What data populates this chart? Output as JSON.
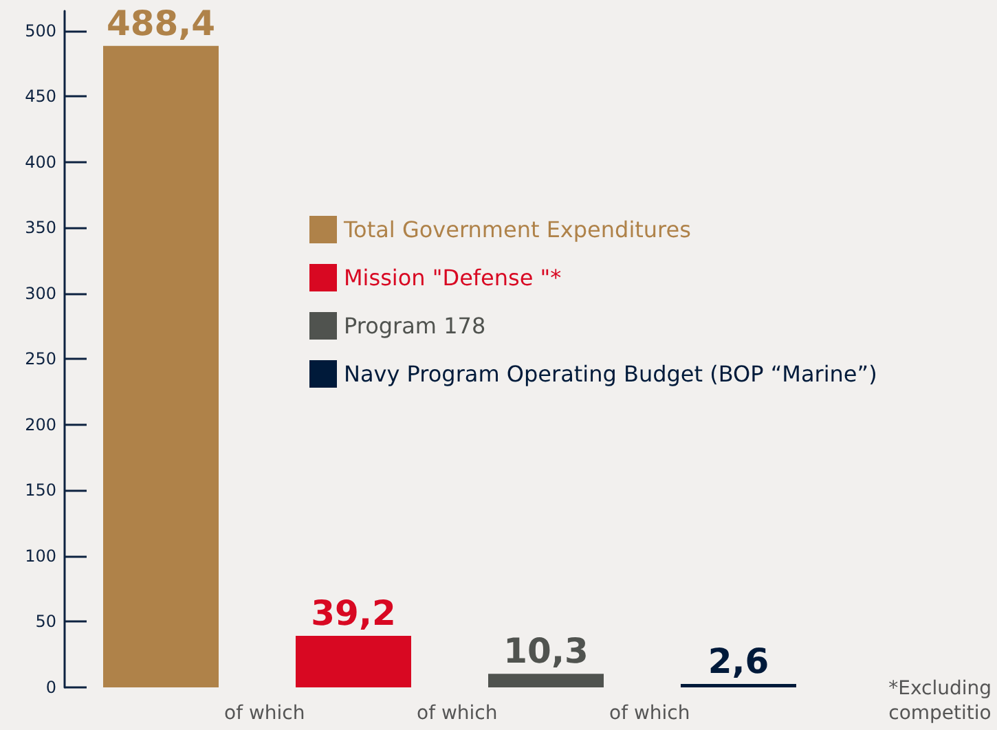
{
  "chart_data": {
    "type": "bar",
    "categories": [
      null,
      null,
      null,
      null
    ],
    "stacked": true,
    "series": [
      {
        "name": "Total Government Expenditures",
        "color": "#af8249",
        "values": [
          488.4,
          null,
          null,
          null
        ],
        "value_labels": [
          "488,4",
          null,
          null,
          null
        ]
      },
      {
        "name": "Mission \"Defense \"*",
        "color": "#d80822",
        "values": [
          null,
          39.2,
          null,
          null
        ],
        "value_labels": [
          null,
          "39,2",
          null,
          null
        ]
      },
      {
        "name": "Program 178",
        "color": "#50534f",
        "values": [
          null,
          null,
          10.3,
          null
        ],
        "value_labels": [
          null,
          null,
          "10,3",
          null
        ]
      },
      {
        "name": "Navy Program Operating Budget (BOP “Marine”)",
        "color": "#001a3a",
        "values": [
          null,
          null,
          null,
          2.6
        ],
        "value_labels": [
          null,
          null,
          null,
          "2,6"
        ]
      }
    ],
    "ylim": [
      0,
      515
    ],
    "yticks": [
      0,
      50,
      100,
      150,
      200,
      250,
      300,
      350,
      400,
      450,
      500
    ],
    "grid": false,
    "legend": "top right",
    "annotations": [
      "of which",
      "of which",
      "of which",
      "*Excluding competitio"
    ]
  }
}
